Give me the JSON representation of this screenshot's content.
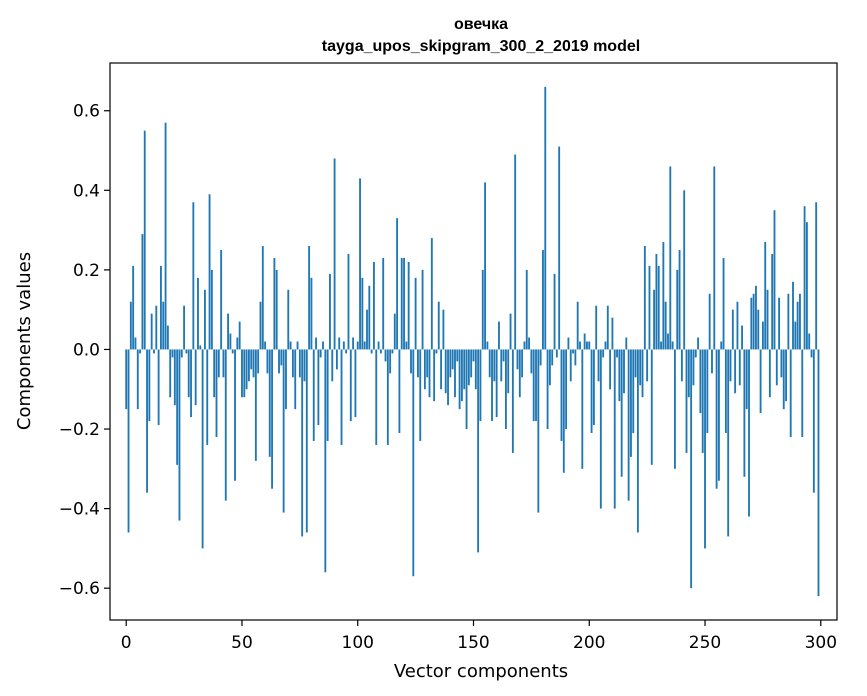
{
  "chart_data": {
    "type": "bar",
    "title_line1": "овечка",
    "title_line2": "tayga_upos_skipgram_300_2_2019 model",
    "xlabel": "Vector components",
    "ylabel": "Components values",
    "xlim": [
      -7,
      307
    ],
    "ylim": [
      -0.68,
      0.72
    ],
    "xticks": [
      0,
      50,
      100,
      150,
      200,
      250,
      300
    ],
    "xtick_labels": [
      "0",
      "50",
      "100",
      "150",
      "200",
      "250",
      "300"
    ],
    "yticks": [
      -0.6,
      -0.4,
      -0.2,
      0.0,
      0.2,
      0.4,
      0.6
    ],
    "ytick_labels": [
      "−0.6",
      "−0.4",
      "−0.2",
      "0.0",
      "0.2",
      "0.4",
      "0.6"
    ],
    "bar_color": "#1f77b4",
    "values": [
      -0.15,
      -0.46,
      0.12,
      0.21,
      0.03,
      -0.15,
      -0.01,
      0.29,
      0.55,
      -0.36,
      -0.18,
      0.09,
      -0.01,
      0.11,
      -0.19,
      0.21,
      0.12,
      0.57,
      0.06,
      -0.12,
      -0.02,
      -0.14,
      -0.29,
      -0.43,
      -0.02,
      0.11,
      -0.01,
      -0.12,
      -0.17,
      0.37,
      -0.14,
      0.18,
      0.01,
      -0.5,
      0.15,
      -0.24,
      0.39,
      0.2,
      -0.12,
      -0.22,
      -0.07,
      0.25,
      -0.07,
      -0.38,
      0.09,
      0.04,
      -0.01,
      -0.33,
      0.03,
      0.07,
      -0.12,
      -0.12,
      -0.1,
      -0.08,
      -0.05,
      -0.07,
      -0.28,
      -0.06,
      0.12,
      0.26,
      0.02,
      -0.06,
      -0.27,
      -0.35,
      0.23,
      0.2,
      -0.06,
      -0.04,
      -0.41,
      -0.15,
      0.15,
      0.02,
      -0.07,
      -0.15,
      0.02,
      -0.07,
      -0.47,
      -0.08,
      -0.46,
      0.26,
      0.18,
      -0.23,
      0.03,
      -0.19,
      -0.02,
      0.02,
      -0.56,
      -0.23,
      0.19,
      -0.08,
      0.48,
      -0.05,
      0.03,
      -0.24,
      0.02,
      -0.01,
      0.24,
      -0.18,
      0.03,
      -0.17,
      0.02,
      0.43,
      0.18,
      0.02,
      0.1,
      0.16,
      -0.01,
      0.22,
      -0.24,
      0.02,
      -0.01,
      0.23,
      -0.03,
      -0.24,
      -0.06,
      -0.01,
      0.09,
      0.33,
      -0.21,
      0.23,
      0.23,
      0.02,
      0.22,
      -0.06,
      -0.57,
      0.18,
      -0.07,
      -0.23,
      0.2,
      -0.1,
      -0.07,
      -0.12,
      0.28,
      -0.13,
      -0.01,
      0.12,
      -0.1,
      0.1,
      -0.11,
      -0.14,
      -0.07,
      -0.05,
      -0.12,
      -0.03,
      -0.15,
      -0.13,
      -0.1,
      -0.2,
      -0.09,
      -0.07,
      -0.03,
      -0.1,
      -0.51,
      -0.18,
      0.2,
      0.42,
      0.02,
      -0.07,
      -0.18,
      -0.08,
      -0.17,
      0.07,
      -0.08,
      -0.03,
      -0.2,
      -0.11,
      0.09,
      -0.26,
      0.49,
      -0.05,
      -0.12,
      -0.07,
      0.02,
      0.2,
      0.03,
      -0.06,
      -0.18,
      -0.18,
      -0.41,
      -0.04,
      0.25,
      0.66,
      -0.2,
      -0.09,
      -0.04,
      0.19,
      -0.02,
      0.51,
      -0.23,
      -0.31,
      -0.2,
      0.03,
      -0.08,
      -0.01,
      -0.04,
      0.12,
      0.02,
      -0.3,
      0.04,
      0.02,
      0.02,
      -0.21,
      -0.19,
      0.11,
      -0.08,
      -0.4,
      -0.02,
      0.02,
      0.11,
      -0.1,
      0.08,
      -0.4,
      -0.02,
      -0.13,
      -0.32,
      -0.11,
      0.03,
      -0.38,
      -0.27,
      -0.21,
      -0.07,
      -0.46,
      -0.09,
      -0.12,
      0.26,
      -0.08,
      0.21,
      -0.29,
      0.15,
      0.24,
      0.21,
      0.02,
      0.27,
      0.12,
      0.04,
      0.46,
      0.02,
      -0.3,
      0.2,
      0.25,
      -0.08,
      0.4,
      -0.26,
      -0.12,
      -0.6,
      -0.09,
      -0.02,
      0.03,
      -0.16,
      -0.26,
      -0.5,
      -0.21,
      0.14,
      -0.06,
      0.46,
      -0.35,
      -0.33,
      0.02,
      0.23,
      -0.21,
      -0.47,
      -0.08,
      0.1,
      -0.11,
      0.12,
      -0.09,
      0.06,
      -0.32,
      -0.15,
      -0.42,
      0.13,
      0.14,
      0.16,
      0.1,
      -0.16,
      0.07,
      0.27,
      0.15,
      -0.12,
      0.24,
      0.35,
      -0.09,
      0.13,
      -0.07,
      -0.15,
      -0.13,
      0.14,
      -0.22,
      0.17,
      0.07,
      0.12,
      0.14,
      -0.22,
      0.36,
      0.32,
      0.04,
      -0.02,
      -0.36,
      0.37,
      -0.62
    ]
  }
}
